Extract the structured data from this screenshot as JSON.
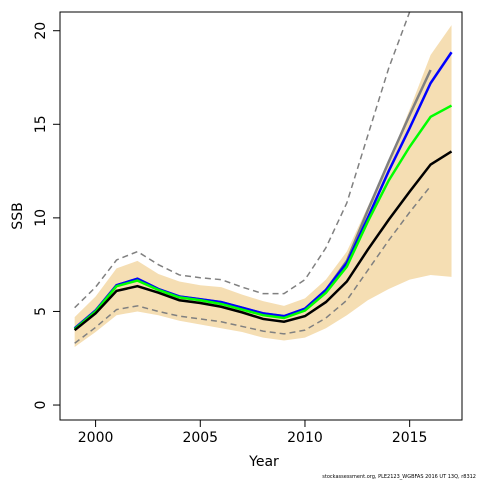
{
  "chart_data": {
    "type": "line",
    "xlabel": "Year",
    "ylabel": "SSB",
    "footnote": "stockassessment.org, PLE2123_WGBFAS 2016 UT 13Q, r8312",
    "x": [
      1999,
      2000,
      2001,
      2002,
      2003,
      2004,
      2005,
      2006,
      2007,
      2008,
      2009,
      2010,
      2011,
      2012,
      2013,
      2014,
      2015,
      2016,
      2017
    ],
    "band": {
      "color": "#f5deb3",
      "upper": [
        4.7,
        5.8,
        7.3,
        7.7,
        7.0,
        6.6,
        6.4,
        6.3,
        5.9,
        5.55,
        5.3,
        5.7,
        6.7,
        8.2,
        10.6,
        13.0,
        15.8,
        18.7,
        20.3
      ],
      "lower": [
        3.1,
        3.9,
        4.8,
        5.0,
        4.8,
        4.5,
        4.3,
        4.1,
        3.9,
        3.6,
        3.45,
        3.6,
        4.1,
        4.8,
        5.6,
        6.2,
        6.7,
        6.95,
        6.85
      ]
    },
    "series": [
      {
        "color": "#808080",
        "dash": true,
        "values": [
          5.2,
          6.3,
          7.75,
          8.2,
          7.5,
          6.95,
          6.8,
          6.7,
          6.3,
          5.95,
          5.95,
          6.7,
          8.4,
          10.8,
          14.4,
          18.0,
          21.0,
          null,
          null
        ]
      },
      {
        "color": "#808080",
        "dash": true,
        "values": [
          3.3,
          4.15,
          5.1,
          5.3,
          5.0,
          4.75,
          4.6,
          4.45,
          4.2,
          3.95,
          3.8,
          4.0,
          4.65,
          5.6,
          7.2,
          8.8,
          10.3,
          11.7,
          null
        ]
      },
      {
        "color": "#808080",
        "values": [
          4.1,
          5.05,
          6.4,
          6.75,
          6.2,
          5.8,
          5.65,
          5.5,
          5.2,
          4.9,
          4.75,
          5.15,
          6.15,
          7.7,
          10.4,
          13.0,
          15.5,
          17.9,
          null
        ]
      },
      {
        "color": "#0000ff",
        "values": [
          4.1,
          5.05,
          6.4,
          6.75,
          6.2,
          5.8,
          5.65,
          5.5,
          5.2,
          4.9,
          4.75,
          5.15,
          6.15,
          7.6,
          10.0,
          12.5,
          14.8,
          17.2,
          18.85
        ]
      },
      {
        "color": "#00ff00",
        "values": [
          4.05,
          5.0,
          6.35,
          6.65,
          6.15,
          5.75,
          5.6,
          5.4,
          5.1,
          4.8,
          4.65,
          5.05,
          6.0,
          7.4,
          9.8,
          12.0,
          13.8,
          15.4,
          16.0
        ]
      },
      {
        "color": "#000000",
        "values": [
          4.0,
          4.9,
          6.1,
          6.35,
          6.0,
          5.6,
          5.45,
          5.25,
          4.95,
          4.6,
          4.45,
          4.75,
          5.5,
          6.6,
          8.3,
          9.9,
          11.4,
          12.85,
          13.55
        ]
      }
    ],
    "xlim": [
      1998.3,
      2017.5
    ],
    "xticks": [
      2000,
      2005,
      2010,
      2015
    ],
    "ylim": [
      -0.8,
      21.0
    ],
    "yticks": [
      0,
      5,
      10,
      15,
      20
    ]
  }
}
